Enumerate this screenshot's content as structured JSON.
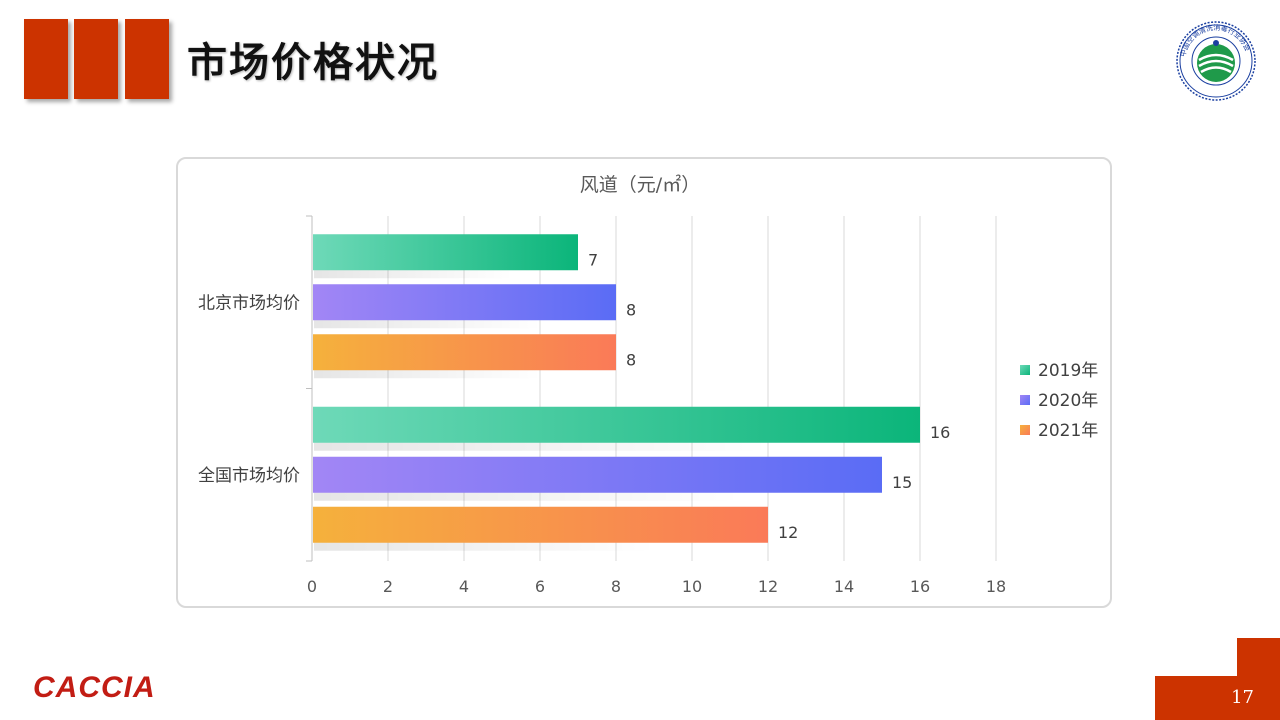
{
  "header": {
    "title": "市场价格状况"
  },
  "logo": {
    "icon": "association-seal-icon",
    "ring_text": "中国空调清洗消毒行业协会",
    "colors": {
      "ring": "#1a3fa0",
      "globe": "#1f9a4a"
    }
  },
  "chart_data": {
    "type": "bar",
    "orientation": "horizontal",
    "title": "风道（元/㎡）",
    "categories": [
      "北京市场均价",
      "全国市场均价"
    ],
    "series": [
      {
        "name": "2019年",
        "values": [
          7,
          16
        ],
        "color_start": "#6ed9b8",
        "color_end": "#0bb57a"
      },
      {
        "name": "2020年",
        "values": [
          8,
          15
        ],
        "color_start": "#a286f5",
        "color_end": "#5a6cf5"
      },
      {
        "name": "2021年",
        "values": [
          8,
          12
        ],
        "color_start": "#f5b13c",
        "color_end": "#fa7a58"
      }
    ],
    "xlim": [
      0,
      18
    ],
    "xticks": [
      "0",
      "2",
      "4",
      "6",
      "8",
      "10",
      "12",
      "14",
      "16",
      "18"
    ],
    "grid": true,
    "legend": "right"
  },
  "footer": {
    "brand": "CACCIA",
    "page_number": "17"
  },
  "colors": {
    "accent": "#cc3300",
    "brand_text": "#c21d14"
  }
}
